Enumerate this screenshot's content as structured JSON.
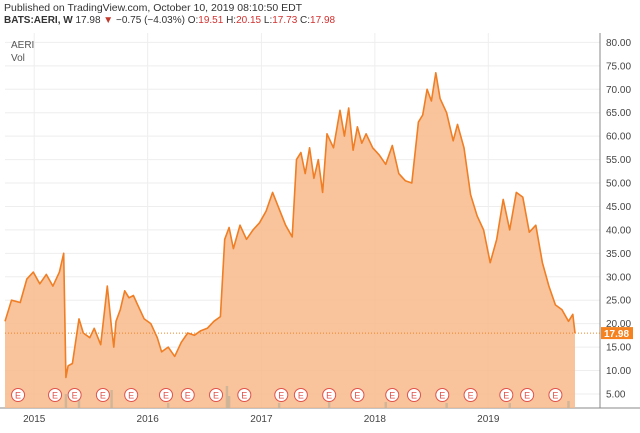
{
  "header": {
    "published": "Published on TradingView.com, October 10, 2019 08:10:50 EDT",
    "symbol": "BATS:AERI, W",
    "last": "17.98",
    "arrow": "▼",
    "change": "−0.75 (−4.03%)",
    "open_label": "O:",
    "open": "19.51",
    "high_label": "H:",
    "high": "20.15",
    "low_label": "L:",
    "low": "17.73",
    "close_label": "C:",
    "close": "17.98"
  },
  "pane": {
    "name": "AERI",
    "vol_label": "Vol"
  },
  "colors": {
    "line": "#ef7e24",
    "area": "#f8b98a",
    "volume": "#c6b197",
    "grid": "#eeeeee",
    "lastprice": "#f5821f",
    "earnings_badge": "#e0524a"
  },
  "chart_data": {
    "type": "area",
    "title": "",
    "xlabel": "",
    "ylabel": "",
    "ylim": [
      2,
      82
    ],
    "y_ticks": [
      "5.00",
      "10.00",
      "15.00",
      "20.00",
      "25.00",
      "30.00",
      "35.00",
      "40.00",
      "45.00",
      "50.00",
      "55.00",
      "60.00",
      "65.00",
      "70.00",
      "75.00",
      "80.00"
    ],
    "x_ticks": [
      "2015",
      "2016",
      "2017",
      "2018",
      "2019"
    ],
    "last_price_label": "17.98",
    "earnings_marker": "E",
    "series": [
      {
        "x": [
          "2014-09-29",
          "2014-10-20",
          "2014-11-17",
          "2014-12-08",
          "2014-12-29",
          "2015-01-19",
          "2015-02-09",
          "2015-03-02",
          "2015-03-23",
          "2015-04-06",
          "2015-04-13",
          "2015-04-20",
          "2015-05-04",
          "2015-05-25",
          "2015-06-08",
          "2015-06-29",
          "2015-07-13",
          "2015-08-03",
          "2015-08-24",
          "2015-09-07",
          "2015-09-14",
          "2015-09-21",
          "2015-10-05",
          "2015-10-19",
          "2015-11-02",
          "2015-11-16",
          "2015-11-30",
          "2015-12-21",
          "2016-01-11",
          "2016-02-01",
          "2016-02-15",
          "2016-03-07",
          "2016-03-28",
          "2016-04-18",
          "2016-05-09",
          "2016-05-30",
          "2016-06-20",
          "2016-07-11",
          "2016-08-01",
          "2016-08-22",
          "2016-09-05",
          "2016-09-19",
          "2016-10-03",
          "2016-10-24",
          "2016-11-14",
          "2016-12-05",
          "2016-12-26",
          "2017-01-16",
          "2017-02-06",
          "2017-02-27",
          "2017-03-20",
          "2017-04-10",
          "2017-04-24",
          "2017-05-08",
          "2017-05-22",
          "2017-06-05",
          "2017-06-19",
          "2017-07-03",
          "2017-07-17",
          "2017-07-31",
          "2017-08-21",
          "2017-09-11",
          "2017-09-25",
          "2017-10-09",
          "2017-10-23",
          "2017-11-06",
          "2017-11-20",
          "2017-12-04",
          "2017-12-25",
          "2018-01-15",
          "2018-02-05",
          "2018-02-26",
          "2018-03-19",
          "2018-04-09",
          "2018-04-30",
          "2018-05-21",
          "2018-06-04",
          "2018-06-18",
          "2018-07-02",
          "2018-07-16",
          "2018-07-30",
          "2018-08-20",
          "2018-09-10",
          "2018-09-24",
          "2018-10-15",
          "2018-11-05",
          "2018-11-26",
          "2018-12-17",
          "2019-01-07",
          "2019-01-28",
          "2019-02-18",
          "2019-03-11",
          "2019-04-01",
          "2019-04-22",
          "2019-05-13",
          "2019-06-03",
          "2019-06-24",
          "2019-07-15",
          "2019-08-05",
          "2019-08-26",
          "2019-09-16",
          "2019-09-30",
          "2019-10-07"
        ],
        "values": [
          20.5,
          25.0,
          24.5,
          29.5,
          31.0,
          28.5,
          30.5,
          28.0,
          31.0,
          35.0,
          8.5,
          11.0,
          11.5,
          21.0,
          18.0,
          17.0,
          19.0,
          15.5,
          28.0,
          19.0,
          15.0,
          20.5,
          23.0,
          27.0,
          25.5,
          26.0,
          24.0,
          21.0,
          20.0,
          17.0,
          14.0,
          15.0,
          13.0,
          16.0,
          18.0,
          17.5,
          18.5,
          19.0,
          20.5,
          21.5,
          38.0,
          40.5,
          36.0,
          41.0,
          38.0,
          40.0,
          41.5,
          44.0,
          48.0,
          44.5,
          41.0,
          38.5,
          55.0,
          56.5,
          52.0,
          57.5,
          51.0,
          55.0,
          48.0,
          60.5,
          57.5,
          65.5,
          60.0,
          66.0,
          57.0,
          62.0,
          58.5,
          60.5,
          57.5,
          56.0,
          54.0,
          58.0,
          52.0,
          50.5,
          50.0,
          63.0,
          64.5,
          70.0,
          67.5,
          73.5,
          68.0,
          65.0,
          59.0,
          62.5,
          57.5,
          47.5,
          43.0,
          40.0,
          33.0,
          38.0,
          46.5,
          40.0,
          48.0,
          47.0,
          39.5,
          41.0,
          33.0,
          28.0,
          24.0,
          23.0,
          20.5,
          22.0,
          18.0
        ]
      }
    ],
    "volume": {
      "x": [
        "2015-04-13",
        "2015-05-25",
        "2015-09-07",
        "2016-03-07",
        "2016-09-12",
        "2016-09-19",
        "2017-02-27",
        "2017-08-07",
        "2018-02-05",
        "2018-08-20",
        "2019-03-11",
        "2019-09-16"
      ],
      "values": [
        14,
        10,
        18,
        5,
        22,
        12,
        5,
        9,
        6,
        5,
        5,
        7
      ]
    },
    "earnings": [
      "2014-11-10",
      "2015-03-09",
      "2015-05-11",
      "2015-08-10",
      "2015-11-09",
      "2016-02-29",
      "2016-05-09",
      "2016-08-08",
      "2016-11-07",
      "2017-03-06",
      "2017-05-08",
      "2017-08-07",
      "2017-11-06",
      "2018-02-26",
      "2018-05-07",
      "2018-08-06",
      "2018-11-05",
      "2019-02-28",
      "2019-05-06",
      "2019-08-05"
    ]
  }
}
